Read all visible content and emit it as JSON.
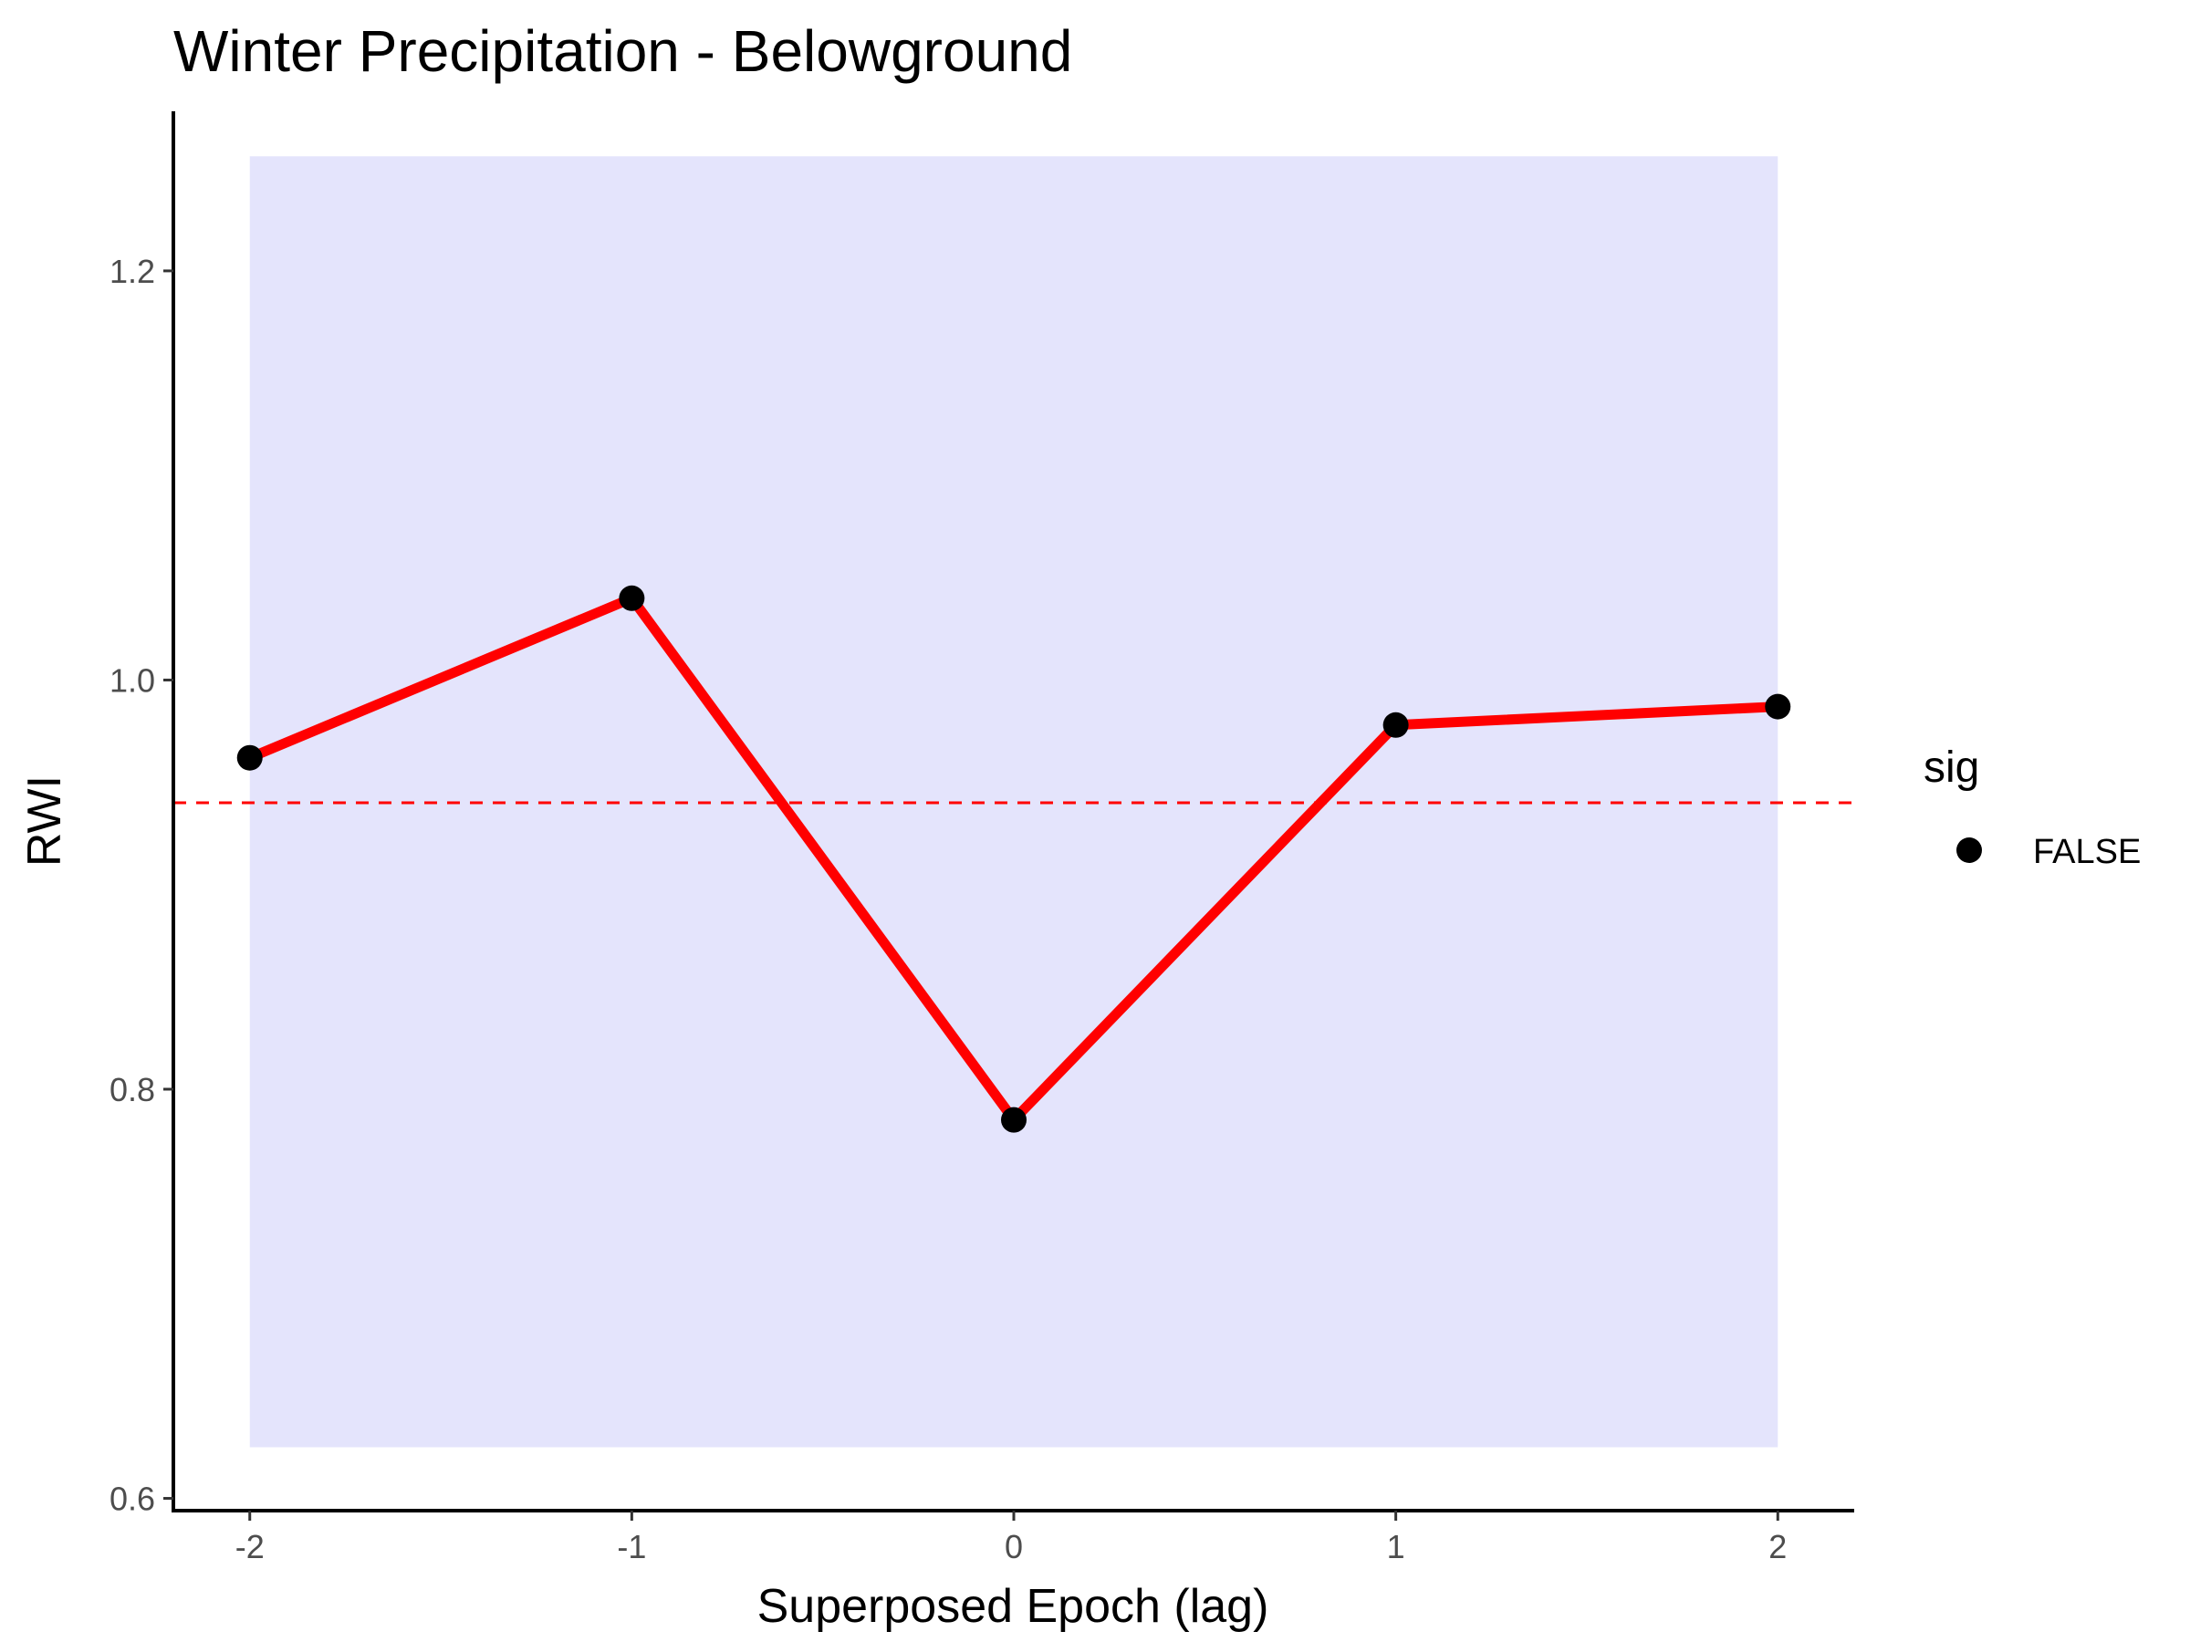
{
  "chart_data": {
    "type": "line",
    "title": "Winter Precipitation - Belowground",
    "xlabel": "Superposed Epoch (lag)",
    "ylabel": "RWI",
    "x": [
      -2,
      -1,
      0,
      1,
      2
    ],
    "x_tick_labels": [
      "-2",
      "-1",
      "0",
      "1",
      "2"
    ],
    "xlim": [
      -2.2,
      2.2
    ],
    "y_ticks": [
      0.6,
      0.8,
      1.0,
      1.2
    ],
    "y_tick_labels": [
      "0.6",
      "0.8",
      "1.0",
      "1.2"
    ],
    "ylim": [
      0.594,
      1.278
    ],
    "series": [
      {
        "values": [
          0.962,
          1.04,
          0.785,
          0.978,
          0.987
        ],
        "line_color": "#ff0000",
        "point_color": "#000000",
        "sig": [
          "FALSE",
          "FALSE",
          "FALSE",
          "FALSE",
          "FALSE"
        ]
      }
    ],
    "confidence_band": {
      "x_range": [
        -2,
        2
      ],
      "y_range": [
        0.625,
        1.256
      ],
      "color": "#e4e4fc"
    },
    "reference_line": {
      "y": 0.94,
      "color": "#ff0000",
      "style": "dashed"
    },
    "legend": {
      "title": "sig",
      "entries": [
        {
          "label": "FALSE",
          "color": "#000000"
        }
      ],
      "position": "right"
    },
    "grid": false
  }
}
